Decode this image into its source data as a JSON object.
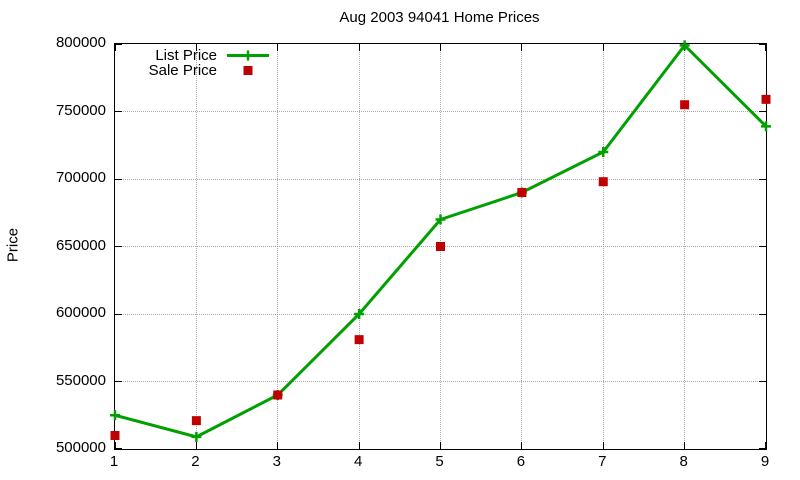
{
  "title": "Aug 2003 94041 Home Prices",
  "ylabel": "Price",
  "colors": {
    "list_series": "#00a000",
    "sale_series": "#c00000",
    "grid": "#a8a8a8",
    "axis": "#000000",
    "background": "#ffffff",
    "text": "#000000"
  },
  "legend": {
    "items": [
      {
        "label": "List Price",
        "marker": "line-with-plus"
      },
      {
        "label": "Sale Price",
        "marker": "filled-square"
      }
    ],
    "position": "top-left-inside"
  },
  "chart_data": {
    "type": "line",
    "title": "Aug 2003 94041 Home Prices",
    "xlabel": "",
    "ylabel": "Price",
    "x": [
      1,
      2,
      3,
      4,
      5,
      6,
      7,
      8,
      9
    ],
    "series": [
      {
        "name": "List Price",
        "style": "line+plus-markers",
        "color": "#00a000",
        "values": [
          525000,
          509000,
          540000,
          600000,
          670000,
          690000,
          720000,
          799000,
          739000
        ]
      },
      {
        "name": "Sale Price",
        "style": "square-points",
        "color": "#c00000",
        "values": [
          510000,
          521000,
          540000,
          581000,
          650000,
          690000,
          698000,
          755000,
          759000
        ]
      }
    ],
    "ylim": [
      500000,
      800000
    ],
    "xlim": [
      1,
      9
    ],
    "yticks": [
      500000,
      550000,
      600000,
      650000,
      700000,
      750000,
      800000
    ],
    "xticks": [
      1,
      2,
      3,
      4,
      5,
      6,
      7,
      8,
      9
    ],
    "grid": true,
    "grid_style": "dotted",
    "legend_position": "top-left-inside"
  }
}
